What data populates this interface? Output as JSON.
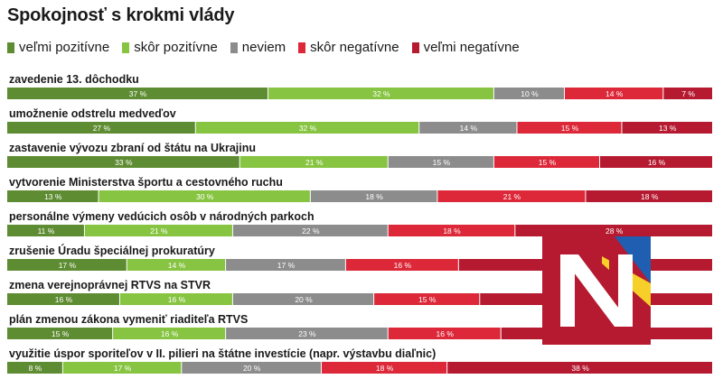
{
  "title": "Spokojnosť s krokmi vlády",
  "legend": [
    {
      "label": "veľmi pozitívne",
      "color": "#5e8c32"
    },
    {
      "label": "skôr pozitívne",
      "color": "#86c441"
    },
    {
      "label": "neviem",
      "color": "#8c8c8c"
    },
    {
      "label": "skôr negatívne",
      "color": "#dc2838"
    },
    {
      "label": "veľmi negatívne",
      "color": "#b51a30"
    }
  ],
  "logo": {
    "name": "N-logo",
    "colors": [
      "#b51a30",
      "#ffffff",
      "#f7cf29",
      "#1f5eb0"
    ]
  },
  "chart_data": {
    "type": "bar",
    "orientation": "horizontal-stacked",
    "unit": "%",
    "categories": [
      "zavedenie 13. dôchodku",
      "umožnenie odstrelu medveďov",
      "zastavenie vývozu zbraní od štátu na Ukrajinu",
      "vytvorenie Ministerstva športu a cestovného ruchu",
      "personálne výmeny vedúcich osôb v národných parkoch",
      "zrušenie Úradu špeciálnej prokuratúry",
      "zmena verejnoprávnej RTVS na STVR",
      "plán zmenou zákona vymeniť riaditeľa RTVS",
      "využitie úspor sporiteľov v II. pilieri na štátne investície (napr. výstavbu diaľnic)"
    ],
    "series": [
      {
        "name": "veľmi pozitívne",
        "values": [
          37,
          27,
          33,
          13,
          11,
          17,
          16,
          15,
          8
        ]
      },
      {
        "name": "skôr pozitívne",
        "values": [
          32,
          32,
          21,
          30,
          21,
          14,
          16,
          16,
          17
        ]
      },
      {
        "name": "neviem",
        "values": [
          10,
          14,
          15,
          18,
          22,
          17,
          20,
          23,
          20
        ]
      },
      {
        "name": "skôr negatívne",
        "values": [
          14,
          15,
          15,
          21,
          18,
          16,
          15,
          16,
          18
        ]
      },
      {
        "name": "veľmi negatívne",
        "values": [
          7,
          13,
          16,
          18,
          28,
          36,
          33,
          30,
          38
        ]
      }
    ],
    "value_labels": [
      [
        "37 %",
        "32 %",
        "10 %",
        "14 %",
        "7 %"
      ],
      [
        "27 %",
        "32 %",
        "14 %",
        "15 %",
        "13 %"
      ],
      [
        "33 %",
        "21 %",
        "15 %",
        "15 %",
        "16 %"
      ],
      [
        "13 %",
        "30 %",
        "18 %",
        "21 %",
        "18 %"
      ],
      [
        "11 %",
        "21 %",
        "22 %",
        "18 %",
        "28 %"
      ],
      [
        "17 %",
        "14 %",
        "17 %",
        "16 %",
        ""
      ],
      [
        "16 %",
        "16 %",
        "20 %",
        "15 %",
        ""
      ],
      [
        "15 %",
        "16 %",
        "23 %",
        "16 %",
        ""
      ],
      [
        "8 %",
        "17 %",
        "20 %",
        "18 %",
        "38 %"
      ]
    ],
    "xlim": [
      0,
      100
    ],
    "grid": false,
    "legend_position": "top-left"
  }
}
